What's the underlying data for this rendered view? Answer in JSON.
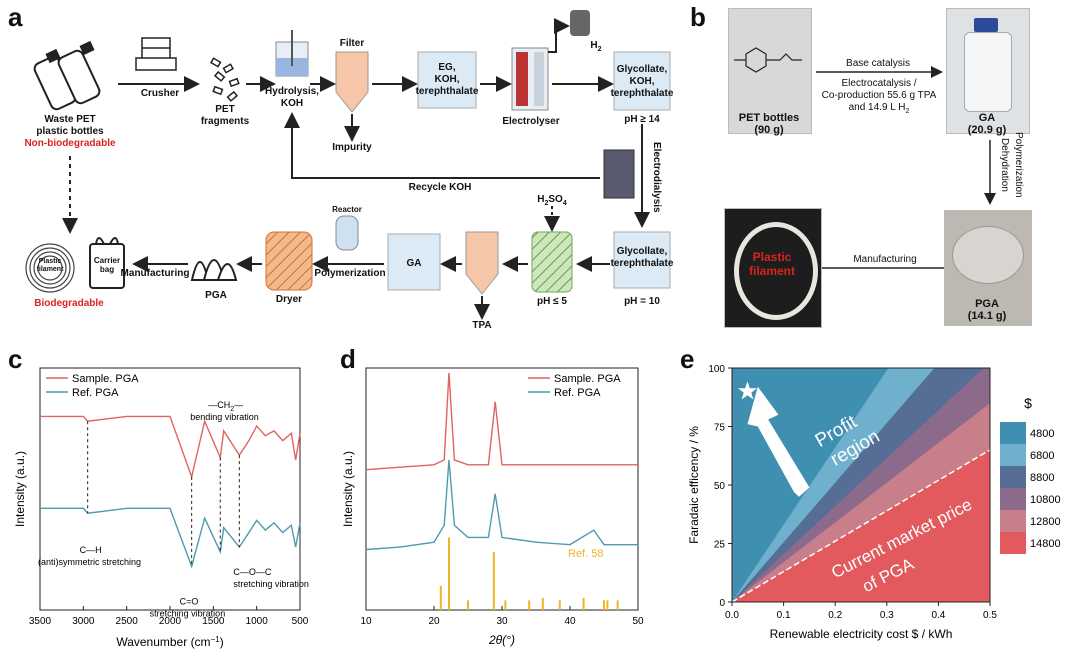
{
  "panels": {
    "a": "a",
    "b": "b",
    "c": "c",
    "d": "d",
    "e": "e"
  },
  "a": {
    "waste": {
      "line1": "Waste PET",
      "line2": "plastic bottles",
      "line3": "Non-biodegradable"
    },
    "crusher": "Crusher",
    "pet_fragments": {
      "line1": "PET",
      "line2": "fragments"
    },
    "hydrolysis": {
      "line1": "Hydrolysis,",
      "line2": "KOH"
    },
    "filter": "Filter",
    "impurity": "Impurity",
    "eg_tank": {
      "line1": "EG,",
      "line2": "KOH,",
      "line3": "terephthalate"
    },
    "electrolyser": "Electrolyser",
    "h2": "H",
    "h2_sub": "2",
    "glycollate1": {
      "line1": "Glycollate,",
      "line2": "KOH,",
      "line3": "terephthalate"
    },
    "ph14": "pH ≥ 14",
    "electrodialysis": "Electrodialysis",
    "recycle": "Recycle KOH",
    "glycollate2": {
      "line1": "Glycollate,",
      "line2": "terephthalate"
    },
    "ph10": "pH = 10",
    "h2so4": "H",
    "h2so4_sub": "2",
    "h2so4_rest": "SO",
    "h2so4_sub2": "4",
    "ph5": "pH ≤ 5",
    "tpa": "TPA",
    "ga": "GA",
    "reactor": "Reactor",
    "polymerization": "Polymerization",
    "dryer": "Dryer",
    "pga": "PGA",
    "manufacturing": "Manufacturing",
    "plastic_filament": {
      "line1": "Plastic",
      "line2": "filament"
    },
    "carrier_bag": {
      "line1": "Carrier",
      "line2": "bag"
    },
    "biodegradable": "Biodegradable"
  },
  "b": {
    "pet_bottles": {
      "line1": "PET bottles",
      "line2": "(90 g)"
    },
    "base_catalysis": "Base catalysis",
    "electro": {
      "line1": "Electrocatalysis /",
      "line2": "Co-production 55.6 g TPA",
      "line3": "and 14.9 L H"
    },
    "electro_sub": "2",
    "ga": {
      "line1": "GA",
      "line2": "(20.9 g)"
    },
    "polymerization": "Polymerization",
    "dehydration": "Dehydration",
    "pga": {
      "line1": "PGA",
      "line2": "(14.1 g)"
    },
    "manufacturing": "Manufacturing",
    "plastic_filament": {
      "line1": "Plastic",
      "line2": "filament"
    }
  },
  "c": {
    "legend": [
      "Sample. PGA",
      "Ref. PGA"
    ],
    "xlabel": "Wavenumber (cm",
    "xlabel_sup": "−1",
    "xlabel_end": ")",
    "ylabel": "Intensity (a.u.)",
    "xticks": [
      "3500",
      "3000",
      "2500",
      "2000",
      "1500",
      "1000",
      "500"
    ],
    "ann": {
      "ch2a": "—CH",
      "ch2b": "2",
      "ch2c": "—",
      "bend": "bending vibration",
      "ch": "C—H",
      "anti": "(anti)symmetric stretching",
      "co": "C=O",
      "costr": "stretching vibration",
      "coc": "C—O—C",
      "cocstr": "stretching vibration"
    }
  },
  "d": {
    "legend": [
      "Sample. PGA",
      "Ref. PGA"
    ],
    "xlabel": "2θ(°)",
    "ylabel": "Intensity (a.u.)",
    "xticks": [
      "10",
      "20",
      "30",
      "40",
      "50"
    ],
    "ref": "Ref. 58"
  },
  "e": {
    "ylabel": "Faradaic efficency / %",
    "xlabel": "Renewable electricity cost $ / kWh",
    "xticks": [
      "0.0",
      "0.1",
      "0.2",
      "0.3",
      "0.4",
      "0.5"
    ],
    "yticks": [
      "0",
      "25",
      "50",
      "75",
      "100"
    ],
    "profit": {
      "line1": "Profit",
      "line2": "region"
    },
    "market": {
      "line1": "Current market price",
      "line2": "of PGA"
    },
    "legend_title": "$",
    "legend": [
      "4800",
      "6800",
      "8800",
      "10800",
      "12800",
      "14800"
    ],
    "colors": [
      "#3f8fb0",
      "#6fb0cc",
      "#566d96",
      "#8c6a8c",
      "#c97f8a",
      "#e35a5e"
    ]
  },
  "chart_data": [
    {
      "type": "line",
      "title": "",
      "xlabel": "Wavenumber (cm−1)",
      "ylabel": "Intensity (a.u.)",
      "xlim": [
        3500,
        500
      ],
      "series": [
        {
          "name": "Sample. PGA",
          "x": [
            3500,
            3000,
            2950,
            2500,
            2000,
            1750,
            1600,
            1420,
            1380,
            1200,
            1090,
            1000,
            900,
            800,
            700,
            600,
            550,
            500
          ],
          "y": [
            0.8,
            0.8,
            0.78,
            0.8,
            0.8,
            0.55,
            0.78,
            0.63,
            0.74,
            0.64,
            0.7,
            0.76,
            0.72,
            0.74,
            0.7,
            0.73,
            0.62,
            0.73
          ]
        },
        {
          "name": "Ref. PGA",
          "x": [
            3500,
            3000,
            2950,
            2500,
            2000,
            1750,
            1600,
            1420,
            1380,
            1200,
            1090,
            1000,
            900,
            800,
            700,
            600,
            550,
            500
          ],
          "y": [
            0.42,
            0.42,
            0.4,
            0.42,
            0.42,
            0.18,
            0.38,
            0.24,
            0.34,
            0.26,
            0.32,
            0.37,
            0.33,
            0.36,
            0.32,
            0.35,
            0.26,
            0.36
          ]
        }
      ]
    },
    {
      "type": "line",
      "title": "",
      "xlabel": "2θ(°)",
      "ylabel": "Intensity (a.u.)",
      "xlim": [
        10,
        50
      ],
      "series": [
        {
          "name": "Sample. PGA",
          "x": [
            10,
            15,
            20,
            21.5,
            22.2,
            23,
            25,
            28,
            29,
            30,
            35,
            40,
            45,
            50
          ],
          "y": [
            0.58,
            0.59,
            0.6,
            0.62,
            0.98,
            0.62,
            0.6,
            0.6,
            0.86,
            0.6,
            0.6,
            0.6,
            0.6,
            0.6
          ]
        },
        {
          "name": "Ref. PGA",
          "x": [
            10,
            15,
            20,
            21.5,
            22.2,
            23,
            25,
            28,
            29,
            30,
            35,
            40,
            43.5,
            45,
            50
          ],
          "y": [
            0.25,
            0.26,
            0.28,
            0.35,
            0.62,
            0.35,
            0.3,
            0.3,
            0.48,
            0.3,
            0.28,
            0.27,
            0.33,
            0.27,
            0.27
          ]
        },
        {
          "name": "Ref. 58",
          "x": [
            21.0,
            22.2,
            25.0,
            28.8,
            30.5,
            34.0,
            36.0,
            38.5,
            42.0,
            45.0,
            45.5,
            47.0
          ],
          "y": [
            0.1,
            0.3,
            0.04,
            0.24,
            0.04,
            0.04,
            0.05,
            0.04,
            0.05,
            0.04,
            0.04,
            0.04
          ]
        }
      ]
    },
    {
      "type": "area",
      "title": "",
      "xlabel": "Renewable electricity cost $ / kWh",
      "ylabel": "Faradaic efficency / %",
      "xlim": [
        0,
        0.5
      ],
      "ylim": [
        0,
        100
      ],
      "series": [
        {
          "name": "4800",
          "slope": 470
        },
        {
          "name": "6800",
          "slope": 330
        },
        {
          "name": "8800",
          "slope": 255
        },
        {
          "name": "10800",
          "slope": 205
        },
        {
          "name": "12800",
          "slope": 170
        },
        {
          "name": "14800",
          "slope": 130
        }
      ],
      "market_price_slope": 130
    }
  ]
}
